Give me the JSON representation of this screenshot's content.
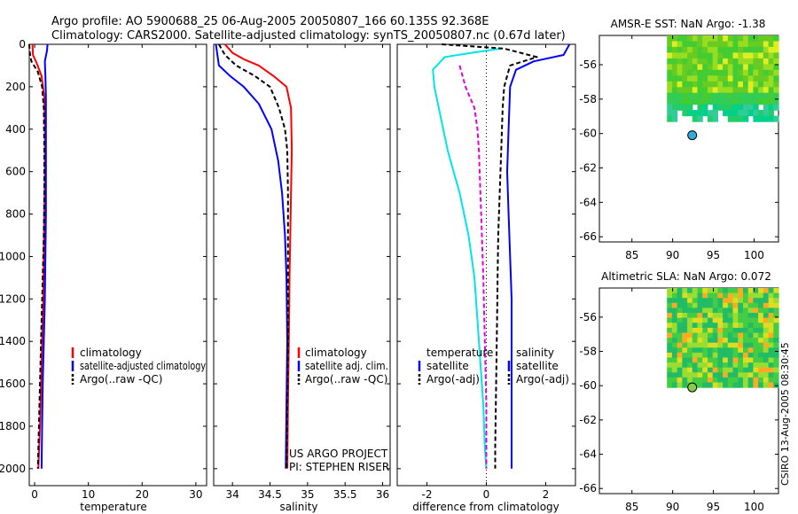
{
  "header": {
    "title_line1": "Argo profile: AO 5900688_25 06-Aug-2005 20050807_166 60.135S 92.368E",
    "title_line2": "Climatology: CARS2000. Satellite-adjusted climatology: synTS_20050807.nc (0.67d later)"
  },
  "watermark": "CSIRO 13-Aug-2005 08:30:45",
  "colors": {
    "climatology": "#ff0000",
    "satellite": "#0000ff",
    "argo": "#000000",
    "temp_diff": "#00e5e5",
    "temp_sat_diff": "#e000e0",
    "land_bg": "#ffffff",
    "marker": "#33aadd",
    "marker2": "#88cc44"
  },
  "chart_data": [
    {
      "type": "line",
      "id": "temperature",
      "xlabel": "temperature",
      "ylabel": "",
      "xlim": [
        -1,
        32
      ],
      "ylim": [
        2080,
        0
      ],
      "xticks": [
        0,
        10,
        20,
        30
      ],
      "yticks": [
        0,
        200,
        400,
        600,
        800,
        1000,
        1200,
        1400,
        1600,
        1800,
        2000
      ],
      "series": [
        {
          "name": "climatology",
          "color": "#ff0000",
          "dash": "",
          "points": [
            [
              -0.4,
              0
            ],
            [
              -0.3,
              50
            ],
            [
              0.4,
              90
            ],
            [
              1.3,
              150
            ],
            [
              1.8,
              250
            ],
            [
              1.9,
              400
            ],
            [
              1.9,
              600
            ],
            [
              1.8,
              800
            ],
            [
              1.7,
              1000
            ],
            [
              1.6,
              1200
            ],
            [
              1.4,
              1400
            ],
            [
              1.2,
              1600
            ],
            [
              1.0,
              1800
            ],
            [
              0.7,
              2000
            ]
          ]
        },
        {
          "name": "satellite-adjusted climatology",
          "color": "#0000ff",
          "dash": "",
          "points": [
            [
              2.4,
              0
            ],
            [
              2.3,
              30
            ],
            [
              1.9,
              80
            ],
            [
              2.0,
              150
            ],
            [
              2.1,
              250
            ],
            [
              2.1,
              400
            ],
            [
              2.1,
              600
            ],
            [
              2.1,
              800
            ],
            [
              2.0,
              1000
            ],
            [
              1.9,
              1200
            ],
            [
              1.7,
              1400
            ],
            [
              1.5,
              1600
            ],
            [
              1.4,
              1800
            ],
            [
              1.3,
              2000
            ]
          ]
        },
        {
          "name": "Argo(..raw -QC)",
          "color": "#000000",
          "dash": "5,3",
          "points": [
            [
              -1.0,
              0
            ],
            [
              -0.9,
              40
            ],
            [
              -0.6,
              80
            ],
            [
              0.6,
              130
            ],
            [
              1.4,
              200
            ],
            [
              1.7,
              300
            ],
            [
              1.8,
              500
            ],
            [
              1.8,
              700
            ],
            [
              1.7,
              900
            ],
            [
              1.5,
              1100
            ],
            [
              1.3,
              1300
            ],
            [
              1.1,
              1500
            ],
            [
              0.9,
              1700
            ],
            [
              0.7,
              1900
            ],
            [
              0.6,
              2000
            ]
          ]
        }
      ],
      "legend": {
        "position": "bottom-right",
        "items": [
          "climatology",
          "satellite-adjusted climatology",
          "Argo(..raw -QC)"
        ]
      }
    },
    {
      "type": "line",
      "id": "salinity",
      "xlabel": "salinity",
      "ylabel": "",
      "xlim": [
        33.75,
        36.1
      ],
      "ylim": [
        2080,
        0
      ],
      "xticks": [
        34,
        34.5,
        35,
        35.5,
        36
      ],
      "xticklabels": [
        "34",
        "34.5",
        "35",
        "35.5",
        "36"
      ],
      "series": [
        {
          "name": "climatology",
          "color": "#ff0000",
          "dash": "",
          "points": [
            [
              33.9,
              0
            ],
            [
              34.0,
              40
            ],
            [
              34.15,
              70
            ],
            [
              34.35,
              100
            ],
            [
              34.55,
              150
            ],
            [
              34.72,
              200
            ],
            [
              34.78,
              300
            ],
            [
              34.79,
              500
            ],
            [
              34.78,
              700
            ],
            [
              34.77,
              900
            ],
            [
              34.76,
              1100
            ],
            [
              34.75,
              1400
            ],
            [
              34.74,
              1700
            ],
            [
              34.73,
              2000
            ]
          ]
        },
        {
          "name": "satellite adj. clim.",
          "color": "#0000ff",
          "dash": "",
          "points": [
            [
              33.78,
              0
            ],
            [
              33.8,
              50
            ],
            [
              33.82,
              100
            ],
            [
              33.97,
              150
            ],
            [
              34.15,
              200
            ],
            [
              34.35,
              280
            ],
            [
              34.52,
              400
            ],
            [
              34.61,
              550
            ],
            [
              34.66,
              700
            ],
            [
              34.7,
              900
            ],
            [
              34.72,
              1100
            ],
            [
              34.73,
              1400
            ],
            [
              34.72,
              1700
            ],
            [
              34.71,
              2000
            ]
          ]
        },
        {
          "name": "Argo(..raw -QC)",
          "color": "#000000",
          "dash": "5,3",
          "points": [
            [
              33.82,
              0
            ],
            [
              33.9,
              50
            ],
            [
              34.05,
              100
            ],
            [
              34.3,
              150
            ],
            [
              34.5,
              200
            ],
            [
              34.62,
              300
            ],
            [
              34.7,
              400
            ],
            [
              34.73,
              500
            ],
            [
              34.74,
              700
            ],
            [
              34.74,
              900
            ],
            [
              34.74,
              1100
            ],
            [
              34.74,
              1400
            ],
            [
              34.73,
              1700
            ],
            [
              34.72,
              2000
            ]
          ]
        }
      ],
      "legend": {
        "position": "bottom-right",
        "items": [
          "climatology",
          "satellite adj. clim.",
          "Argo(..raw -QC)"
        ]
      },
      "annotation": [
        "US ARGO PROJECT",
        "PI: STEPHEN RISER"
      ]
    },
    {
      "type": "line",
      "id": "difference",
      "xlabel": "difference from climatology",
      "ylabel": "",
      "xlim": [
        -3,
        3
      ],
      "ylim": [
        2080,
        0
      ],
      "xticks": [
        -2,
        0,
        2
      ],
      "series": [
        {
          "name": "temperature satellite",
          "color": "#00e5e5",
          "dash": "",
          "points": [
            [
              0.5,
              20
            ],
            [
              -0.5,
              40
            ],
            [
              -1.4,
              60
            ],
            [
              -1.8,
              120
            ],
            [
              -1.75,
              200
            ],
            [
              -1.6,
              300
            ],
            [
              -1.45,
              400
            ],
            [
              -1.3,
              500
            ],
            [
              -1.1,
              600
            ],
            [
              -0.9,
              700
            ],
            [
              -0.75,
              800
            ],
            [
              -0.6,
              900
            ],
            [
              -0.5,
              1000
            ],
            [
              -0.4,
              1100
            ],
            [
              -0.3,
              1300
            ],
            [
              -0.2,
              1500
            ],
            [
              -0.1,
              1700
            ],
            [
              -0.05,
              1900
            ],
            [
              0,
              2000
            ]
          ]
        },
        {
          "name": "temperature Argo(-adj)",
          "color": "#e000e0",
          "dash": "5,3",
          "points": [
            [
              -0.9,
              100
            ],
            [
              -0.7,
              200
            ],
            [
              -0.4,
              300
            ],
            [
              -0.3,
              400
            ],
            [
              -0.25,
              500
            ],
            [
              -0.2,
              700
            ],
            [
              -0.15,
              900
            ],
            [
              -0.1,
              1100
            ],
            [
              -0.05,
              1400
            ],
            [
              0,
              1700
            ],
            [
              0,
              2000
            ]
          ]
        },
        {
          "name": "salinity satellite",
          "color": "#0000ff",
          "dash": "",
          "points": [
            [
              2.8,
              0
            ],
            [
              2.6,
              50
            ],
            [
              1.6,
              80
            ],
            [
              1.0,
              120
            ],
            [
              0.8,
              200
            ],
            [
              0.75,
              400
            ],
            [
              0.7,
              600
            ],
            [
              0.75,
              800
            ],
            [
              0.8,
              1000
            ],
            [
              0.85,
              1200
            ],
            [
              0.85,
              1500
            ],
            [
              0.85,
              1800
            ],
            [
              0.85,
              2000
            ]
          ]
        },
        {
          "name": "salinity Argo(-adj)",
          "color": "#000000",
          "dash": "5,3",
          "points": [
            [
              -1.5,
              0
            ],
            [
              0.6,
              20
            ],
            [
              1.7,
              60
            ],
            [
              0.8,
              100
            ],
            [
              0.6,
              200
            ],
            [
              0.55,
              300
            ],
            [
              0.5,
              500
            ],
            [
              0.45,
              700
            ],
            [
              0.4,
              900
            ],
            [
              0.38,
              1100
            ],
            [
              0.36,
              1300
            ],
            [
              0.34,
              1500
            ],
            [
              0.32,
              1700
            ],
            [
              0.3,
              1900
            ],
            [
              0.3,
              2000
            ]
          ]
        }
      ],
      "legend": {
        "position": "bottom",
        "columns": [
          {
            "title": "temperature",
            "items": [
              "satellite",
              "Argo(-adj)"
            ]
          },
          {
            "title": "salinity",
            "items": [
              "satellite",
              "Argo(-adj)"
            ]
          }
        ]
      }
    }
  ],
  "maps": [
    {
      "id": "sst",
      "title": "AMSR-E SST: NaN Argo: -1.38",
      "xticks": [
        85,
        90,
        95,
        100
      ],
      "yticks": [
        -56,
        -58,
        -60,
        -62,
        -64,
        -66
      ],
      "xlim": [
        81,
        103
      ],
      "ylim": [
        -66.3,
        -54.3
      ],
      "marker": [
        92.4,
        -60.1
      ]
    },
    {
      "id": "sla",
      "title": "Altimetric SLA: NaN Argo: 0.072",
      "xticks": [
        85,
        90,
        95,
        100
      ],
      "yticks": [
        -56,
        -58,
        -60,
        -62,
        -64,
        -66
      ],
      "xlim": [
        81,
        103
      ],
      "ylim": [
        -66.3,
        -54.3
      ],
      "marker": [
        92.4,
        -60.1
      ]
    }
  ]
}
